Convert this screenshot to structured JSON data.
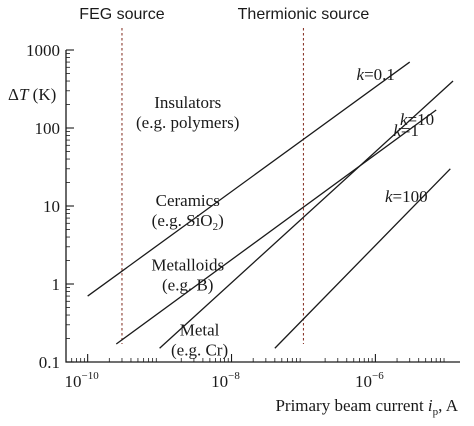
{
  "chart_data": {
    "type": "line",
    "xscale": "log",
    "yscale": "log",
    "xlim": [
      5e-11,
      1.5e-05
    ],
    "ylim": [
      0.1,
      1000
    ],
    "xticks": [
      {
        "value": 1e-10,
        "base": "10",
        "exp": "−10"
      },
      {
        "value": 1e-08,
        "base": "10",
        "exp": "−8"
      },
      {
        "value": 1e-06,
        "base": "10",
        "exp": "−6"
      }
    ],
    "yticks": [
      {
        "value": 0.1,
        "label": "0.1"
      },
      {
        "value": 1,
        "label": "1"
      },
      {
        "value": 10,
        "label": "10"
      },
      {
        "value": 100,
        "label": "100"
      },
      {
        "value": 1000,
        "label": "1000"
      }
    ],
    "ylabel": {
      "prefix": "Δ",
      "var": "T",
      "unit": " (K)"
    },
    "xlabel": {
      "prefix": "Primary beam current ",
      "var": "i",
      "sub": "p",
      "unit": ", A"
    },
    "series": [
      {
        "name": "k=0.1",
        "var": "k",
        "value": "=0.1",
        "x": [
          1e-10,
          3e-06
        ],
        "y": [
          0.7,
          700
        ]
      },
      {
        "name": "k=1",
        "var": "k",
        "value": "=1",
        "x": [
          2.5e-10,
          7e-06
        ],
        "y": [
          0.17,
          170
        ]
      },
      {
        "name": "k=10",
        "var": "k",
        "value": "=10",
        "x": [
          1e-09,
          1.2e-05
        ],
        "y": [
          0.15,
          400
        ]
      },
      {
        "name": "k=100",
        "var": "k",
        "value": "=100",
        "x": [
          4e-08,
          1.1e-05
        ],
        "y": [
          0.15,
          30
        ]
      }
    ],
    "reference_lines": [
      {
        "label": "FEG source",
        "x": 3e-10
      },
      {
        "label": "Thermionic source",
        "x": 1e-07
      }
    ],
    "annotations": [
      {
        "line1": "Insulators",
        "line2": "(e.g. polymers)",
        "x": 1.3e-08,
        "y": 180
      },
      {
        "line1": "Ceramics",
        "line2_pre": "(e.g. SiO",
        "line2_sub": "2",
        "line2_post": ")",
        "x": 1.3e-08,
        "y": 10
      },
      {
        "line1": "Metalloids",
        "line2": "(e.g. B)",
        "x": 1.3e-08,
        "y": 1.5
      },
      {
        "line1": "Metal",
        "line2": "(e.g. Cr)",
        "x": 1.9e-08,
        "y": 0.22
      }
    ]
  }
}
